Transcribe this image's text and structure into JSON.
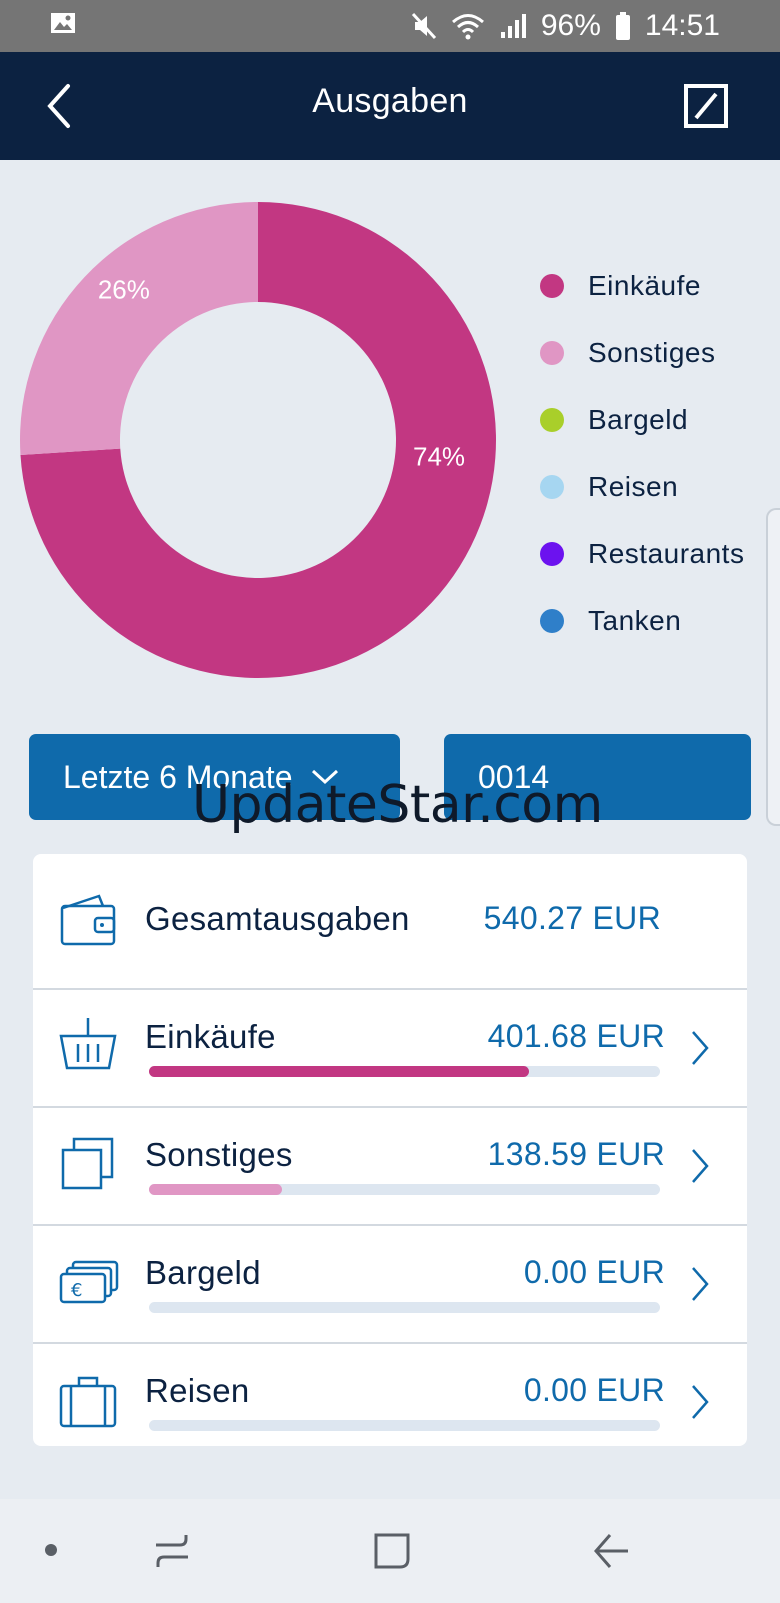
{
  "status_bar": {
    "battery": "96%",
    "time": "14:51",
    "icons": [
      "image-icon",
      "mute-icon",
      "wifi-icon",
      "signal-icon",
      "battery-icon"
    ]
  },
  "app_bar": {
    "title": "Ausgaben",
    "back_icon": "chevron-left-icon",
    "logo_icon": "deutsche-bank-logo-icon"
  },
  "colors": {
    "header": "#0c2241",
    "accent": "#0f6aab",
    "einkaeufe": "#c23782",
    "sonstiges": "#e096c4",
    "bargeld": "#a9cf2a",
    "reisen": "#a6d6f1",
    "restaurants": "#6c12ef",
    "tanken": "#2f7fc9"
  },
  "chart_data": {
    "type": "pie",
    "donut": true,
    "slices": [
      {
        "name": "Einkäufe",
        "percent": 74,
        "label": "74%"
      },
      {
        "name": "Sonstiges",
        "percent": 26,
        "label": "26%"
      }
    ],
    "legend": [
      "Einkäufe",
      "Sonstiges",
      "Bargeld",
      "Reisen",
      "Restaurants",
      "Tanken"
    ],
    "legend_placement": "right"
  },
  "filters": {
    "period": "Letzte 6 Monate",
    "account": "0014"
  },
  "watermark": "UpdateStar.com",
  "summary": {
    "total_label": "Gesamtausgaben",
    "total_amount": "540.27 EUR",
    "categories": [
      {
        "label": "Einkäufe",
        "amount": "401.68 EUR",
        "share": 0.744,
        "icon": "basket-icon"
      },
      {
        "label": "Sonstiges",
        "amount": "138.59 EUR",
        "share": 0.26,
        "icon": "squares-icon"
      },
      {
        "label": "Bargeld",
        "amount": "0.00 EUR",
        "share": 0,
        "icon": "cash-icon"
      },
      {
        "label": "Reisen",
        "amount": "0.00 EUR",
        "share": 0,
        "icon": "suitcase-icon"
      }
    ]
  },
  "nav": {
    "items": [
      "dot-icon",
      "recent-apps-icon",
      "home-icon",
      "back-icon"
    ]
  }
}
